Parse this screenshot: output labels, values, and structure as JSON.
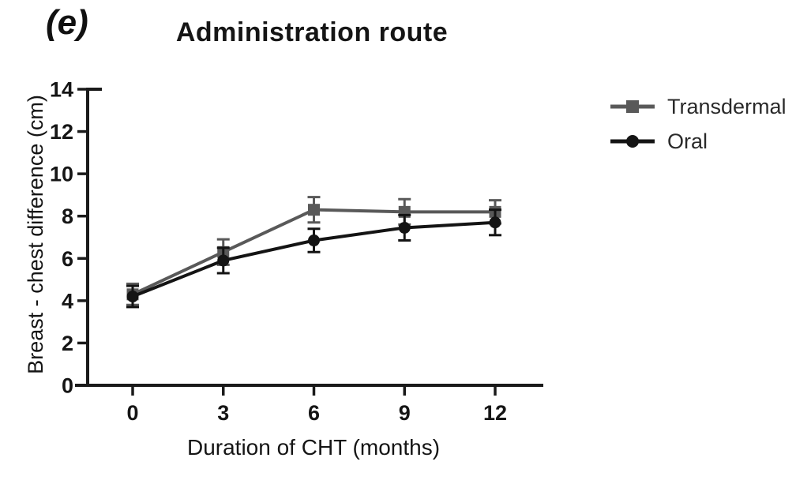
{
  "figure": {
    "panel_label": "(e)"
  },
  "chart_data": {
    "type": "line",
    "title": "Administration route",
    "xlabel": "Duration of CHT (months)",
    "ylabel": "Breast - chest difference (cm)",
    "x": [
      0,
      3,
      6,
      9,
      12
    ],
    "xticks": [
      0,
      3,
      6,
      9,
      12
    ],
    "yticks": [
      0,
      2,
      4,
      6,
      8,
      10,
      12,
      14
    ],
    "xlim": [
      -1.6,
      13.6
    ],
    "ylim": [
      0,
      14
    ],
    "grid": false,
    "legend_position": "right-outside",
    "axis_color": "#1a1a1a",
    "error_bars": true,
    "series": [
      {
        "name": "Transdermal",
        "marker": "square",
        "color": "#595959",
        "values": [
          4.3,
          6.3,
          8.3,
          8.2,
          8.2
        ],
        "errors": [
          0.5,
          0.6,
          0.6,
          0.6,
          0.55
        ]
      },
      {
        "name": "Oral",
        "marker": "circle",
        "color": "#141414",
        "values": [
          4.2,
          5.9,
          6.85,
          7.45,
          7.7
        ],
        "errors": [
          0.5,
          0.6,
          0.55,
          0.6,
          0.6
        ]
      }
    ]
  }
}
